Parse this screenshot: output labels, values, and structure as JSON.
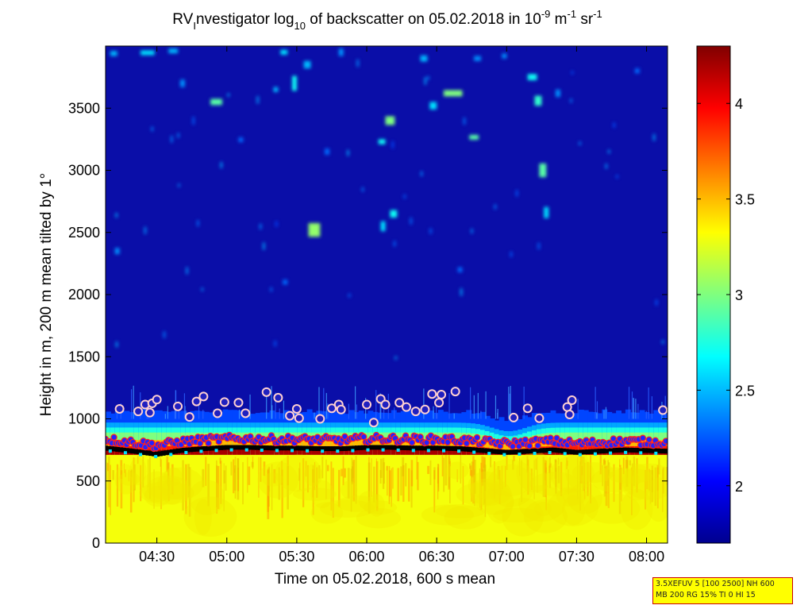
{
  "chart_data": {
    "type": "heatmap",
    "title_parts": [
      {
        "text": "RV"
      },
      {
        "text": "I",
        "shift": "sub"
      },
      {
        "text": "nvestigator log"
      },
      {
        "text": "10",
        "shift": "sub"
      },
      {
        "text": " of backscatter on 05.02.2018 in 10"
      },
      {
        "text": "-9",
        "shift": "super"
      },
      {
        "text": " m"
      },
      {
        "text": "-1",
        "shift": "super"
      },
      {
        "text": " sr"
      },
      {
        "text": "-1",
        "shift": "super"
      }
    ],
    "xlabel": "Time on 05.02.2018, 600 s mean",
    "ylabel": "Height in m, 200 m mean tilted by 1°",
    "xlim": [
      "04:08",
      "08:09"
    ],
    "ylim": [
      0,
      4000
    ],
    "x_ticks": [
      "04:30",
      "05:00",
      "05:30",
      "06:00",
      "06:30",
      "07:00",
      "07:30",
      "08:00"
    ],
    "y_ticks": [
      0,
      500,
      1000,
      1500,
      2000,
      2500,
      3000,
      3500
    ],
    "colorbar": {
      "range": [
        1.7,
        4.3
      ],
      "ticks": [
        2,
        2.5,
        3,
        3.5,
        4
      ],
      "colormap": "jet"
    },
    "layers": {
      "sea_surface_band_top_m": 710,
      "strong_echo_band_m": [
        710,
        800
      ],
      "cloud_layer_m": [
        800,
        1050
      ],
      "background_value": 1.85,
      "surface_value": 3.3,
      "cloud_top_dip": {
        "time": "07:00",
        "depth_m": 70
      }
    },
    "cloud_base_series": {
      "name": "cloud base",
      "times": [
        "04:08",
        "04:20",
        "04:30",
        "04:40",
        "04:50",
        "05:00",
        "05:10",
        "05:20",
        "05:30",
        "05:40",
        "05:50",
        "06:00",
        "06:10",
        "06:20",
        "06:30",
        "06:40",
        "06:50",
        "07:00",
        "07:10",
        "07:20",
        "07:30",
        "07:40",
        "07:50",
        "08:00",
        "08:09"
      ],
      "heights": [
        765,
        740,
        715,
        745,
        760,
        770,
        770,
        765,
        765,
        760,
        760,
        770,
        770,
        765,
        765,
        760,
        745,
        730,
        740,
        750,
        730,
        740,
        750,
        745,
        740
      ]
    },
    "highlighted_points": {
      "times": [
        "04:14",
        "04:22",
        "04:25",
        "04:27",
        "04:28",
        "04:30",
        "04:39",
        "04:44",
        "04:47",
        "04:50",
        "04:56",
        "04:59",
        "05:05",
        "05:08",
        "05:17",
        "05:22",
        "05:27",
        "05:30",
        "05:31",
        "05:40",
        "05:45",
        "05:48",
        "05:49",
        "06:00",
        "06:03",
        "06:06",
        "06:08",
        "06:14",
        "06:17",
        "06:21",
        "06:25",
        "06:28",
        "06:31",
        "06:32",
        "06:38",
        "07:03",
        "07:09",
        "07:14",
        "07:26",
        "07:27",
        "07:28",
        "08:07"
      ],
      "heights": [
        1080,
        1060,
        1115,
        1050,
        1125,
        1155,
        1100,
        1015,
        1140,
        1180,
        1045,
        1135,
        1130,
        1045,
        1215,
        1170,
        1025,
        1080,
        1005,
        1000,
        1085,
        1115,
        1075,
        1115,
        970,
        1160,
        1115,
        1130,
        1095,
        1060,
        1075,
        1200,
        1130,
        1195,
        1220,
        1010,
        1085,
        1005,
        1095,
        1035,
        1150,
        1070
      ]
    }
  },
  "info_box": {
    "line1": "3.5XEFUV 5 [100 2500] NH 600",
    "line2": "MB 200 RG 15% TI 0 HI 15"
  }
}
